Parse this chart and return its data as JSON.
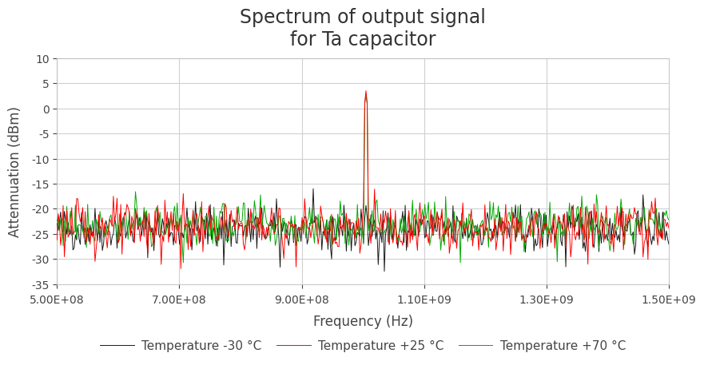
{
  "title": "Spectrum of output signal\nfor Ta capacitor",
  "xlabel": "Frequency (Hz)",
  "ylabel": "Attennuation (dBm)",
  "xlim": [
    500000000.0,
    1500000000.0
  ],
  "ylim": [
    -35,
    10
  ],
  "yticks": [
    -35,
    -30,
    -25,
    -20,
    -15,
    -10,
    -5,
    0,
    5,
    10
  ],
  "xticks": [
    500000000.0,
    700000000.0,
    900000000.0,
    1100000000.0,
    1300000000.0,
    1500000000.0
  ],
  "peak_freq": 1005000000.0,
  "peak_value_red": 3.5,
  "peak_value_green": 2.8,
  "noise_mean": -23.5,
  "noise_std": 2.2,
  "colors": {
    "black": "#1a1a1a",
    "red": "#ff0000",
    "green": "#00aa00"
  },
  "legend_labels": [
    "Temperature -30 °C",
    "Temperature +25 °C",
    "Temperature +70 °C"
  ],
  "linewidth": 0.7,
  "background_color": "#ffffff",
  "grid_color": "#d0d0d0",
  "title_fontsize": 17,
  "axis_label_fontsize": 12,
  "tick_fontsize": 10,
  "legend_fontsize": 11
}
